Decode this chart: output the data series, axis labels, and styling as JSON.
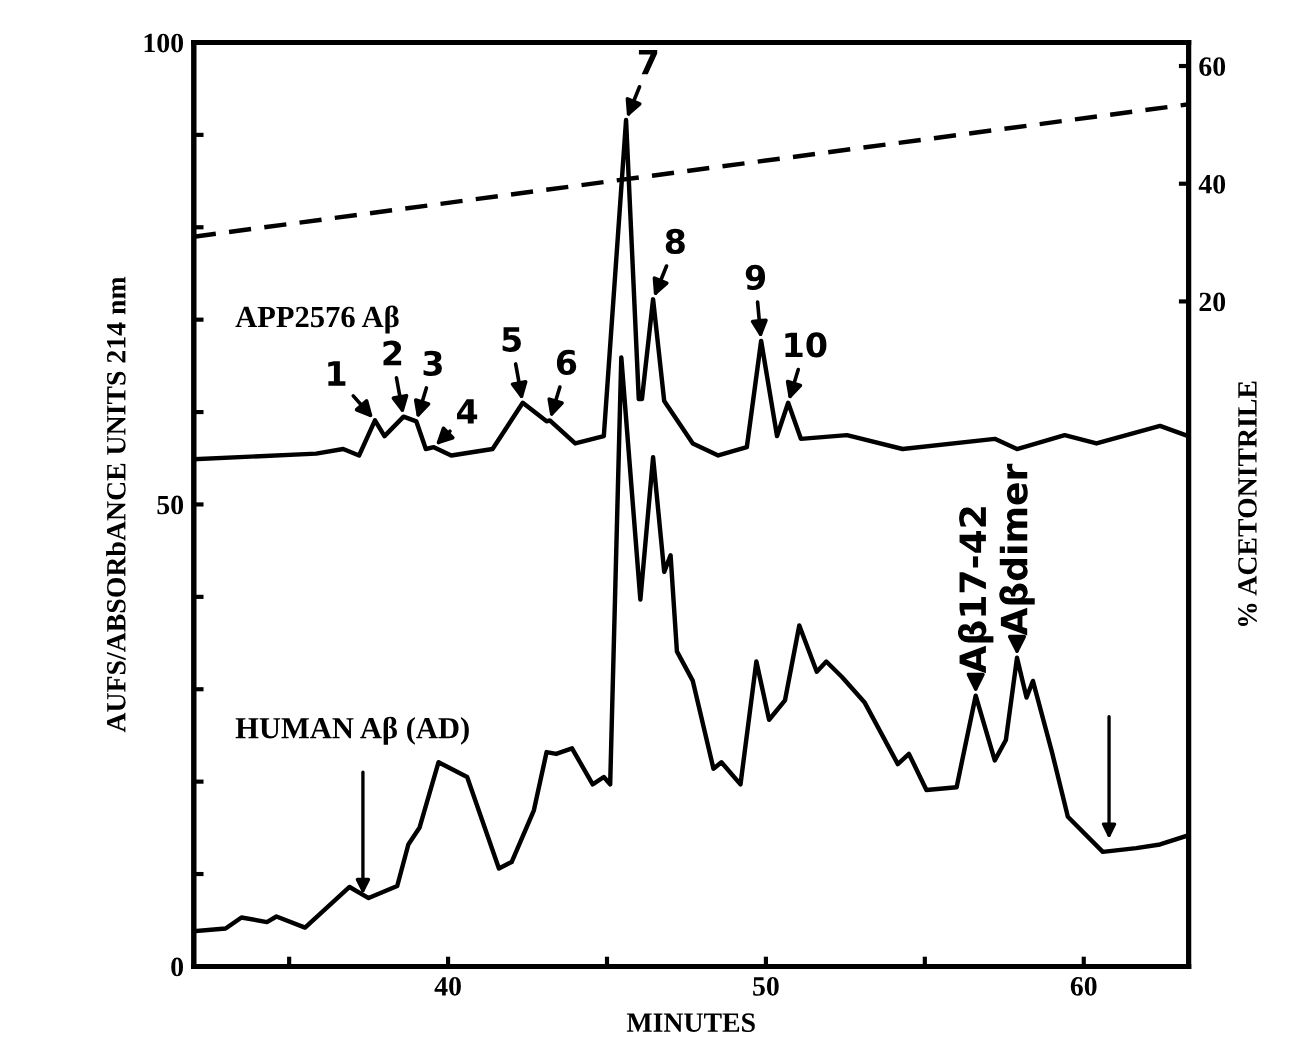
{
  "chart_data": {
    "type": "line",
    "xlabel": "MINUTES",
    "ylabel": "AUFS/ABSORbANCE UNITS 214 nm",
    "y2label": "% ACETONITRILE",
    "xlim": [
      32,
      63.3
    ],
    "xticks": [
      {
        "value": 35,
        "label": null
      },
      40,
      {
        "value": 45,
        "label": null
      },
      50,
      {
        "value": 55,
        "label": null
      },
      60
    ],
    "ylim": [
      0,
      100
    ],
    "yticks": [
      0,
      {
        "value": 10,
        "label": null
      },
      {
        "value": 20,
        "label": null
      },
      {
        "value": 30,
        "label": null
      },
      {
        "value": 40,
        "label": null
      },
      50,
      {
        "value": 60,
        "label": null
      },
      {
        "value": 70,
        "label": null
      },
      {
        "value": 80,
        "label": null
      },
      {
        "value": 90,
        "label": null
      },
      100
    ],
    "y2lim": [
      -93,
      64
    ],
    "y2ticks": [
      20,
      40,
      60
    ],
    "grid": false,
    "legend": false,
    "marker": "none",
    "series": [
      {
        "name": "APP2576 Aβ",
        "color": "#000000",
        "line_style": "solid",
        "x": [
          32.0,
          35.85,
          36.7,
          37.2,
          37.7,
          38.0,
          38.6,
          39.0,
          39.3,
          39.55,
          40.1,
          41.4,
          42.35,
          43.1,
          43.2,
          44.0,
          44.9,
          45.6,
          46.0,
          46.1,
          46.45,
          46.8,
          47.7,
          48.5,
          49.4,
          49.85,
          50.35,
          50.7,
          51.1,
          52.55,
          54.3,
          57.2,
          57.9,
          59.4,
          60.4,
          62.4,
          63.2
        ],
        "values": [
          54.9,
          55.5,
          56.0,
          55.3,
          59.1,
          57.4,
          59.5,
          59.0,
          56.0,
          56.2,
          55.3,
          56.0,
          61.0,
          59.0,
          59.1,
          56.6,
          57.4,
          91.6,
          61.4,
          61.4,
          72.2,
          61.2,
          56.6,
          55.3,
          56.2,
          67.7,
          57.4,
          61.0,
          57.1,
          57.5,
          56.0,
          57.1,
          56.0,
          57.5,
          56.6,
          58.5,
          57.5
        ]
      },
      {
        "name": "HUMAN Aβ (AD)",
        "color": "#000000",
        "line_style": "solid",
        "x": [
          32.0,
          33.0,
          33.5,
          34.3,
          34.6,
          35.5,
          36.9,
          37.5,
          38.4,
          38.75,
          39.1,
          39.7,
          40.6,
          41.6,
          42.0,
          42.7,
          43.1,
          43.4,
          43.9,
          44.55,
          44.9,
          45.1,
          45.45,
          46.05,
          46.45,
          46.8,
          47.0,
          47.2,
          47.7,
          48.35,
          48.6,
          49.2,
          49.7,
          50.1,
          50.6,
          51.05,
          51.6,
          51.9,
          52.4,
          53.1,
          54.15,
          54.5,
          55.05,
          56.0,
          56.6,
          57.2,
          57.55,
          57.9,
          58.2,
          58.4,
          59.0,
          59.5,
          60.6,
          61.65,
          62.4,
          63.3
        ],
        "values": [
          3.8,
          4.1,
          5.3,
          4.8,
          5.4,
          4.2,
          8.6,
          7.4,
          8.7,
          13.2,
          15.0,
          22.1,
          20.5,
          10.6,
          11.3,
          16.9,
          23.2,
          23.0,
          23.6,
          19.7,
          20.5,
          19.7,
          65.9,
          39.7,
          55.1,
          42.7,
          44.5,
          34.1,
          30.9,
          21.4,
          22.1,
          19.7,
          33.0,
          26.7,
          28.8,
          36.9,
          31.9,
          33.0,
          31.3,
          28.6,
          21.9,
          23.0,
          19.1,
          19.4,
          29.3,
          22.3,
          24.5,
          33.4,
          29.1,
          30.9,
          23.2,
          16.2,
          12.4,
          12.8,
          13.2,
          14.2
        ]
      },
      {
        "color": "#000000",
        "line_style": "dashed",
        "axis": "y2",
        "x": [
          32.0,
          63.3
        ],
        "values": [
          31,
          53.5
        ]
      }
    ],
    "annotations": [
      {
        "text": "1",
        "x": 37.7,
        "y": 59.1
      },
      {
        "text": "2",
        "x": 38.6,
        "y": 59.5
      },
      {
        "text": "3",
        "x": 39.0,
        "y": 59.0
      },
      {
        "text": "4",
        "x": 39.55,
        "y": 56.2
      },
      {
        "text": "5",
        "x": 42.35,
        "y": 61.0
      },
      {
        "text": "6",
        "x": 43.2,
        "y": 59.1
      },
      {
        "text": "7",
        "x": 45.6,
        "y": 91.6
      },
      {
        "text": "8",
        "x": 46.45,
        "y": 72.2
      },
      {
        "text": "9",
        "x": 49.85,
        "y": 67.7
      },
      {
        "text": "10",
        "x": 50.7,
        "y": 61.0
      },
      {
        "text": "Aβ17-42",
        "x": 56.6,
        "y": 29.3
      },
      {
        "text": "Aβdimer",
        "x": 57.9,
        "y": 33.4
      }
    ]
  }
}
